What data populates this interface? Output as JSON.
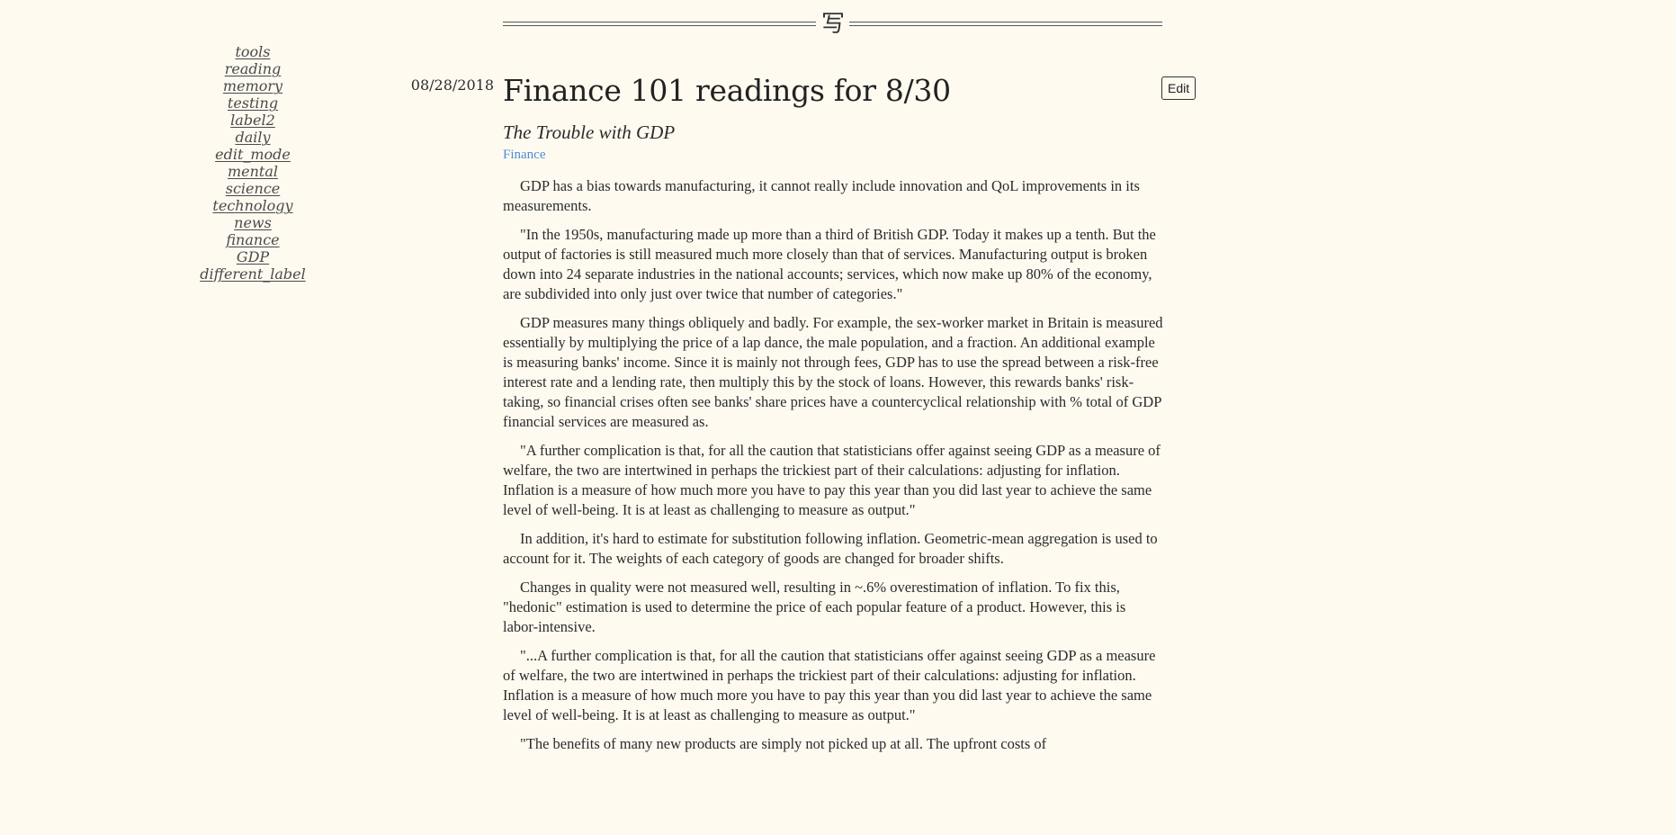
{
  "header": {
    "glyph": "写"
  },
  "sidebar": {
    "items": [
      {
        "label": "tools"
      },
      {
        "label": "reading"
      },
      {
        "label": "memory"
      },
      {
        "label": "testing"
      },
      {
        "label": "label2"
      },
      {
        "label": "daily"
      },
      {
        "label": "edit_mode"
      },
      {
        "label": "mental"
      },
      {
        "label": "science"
      },
      {
        "label": "technology"
      },
      {
        "label": "news"
      },
      {
        "label": "finance"
      },
      {
        "label": "GDP"
      },
      {
        "label": "different_label"
      }
    ]
  },
  "post": {
    "date": "08/28/2018",
    "title": "Finance 101 readings for 8/30",
    "edit_label": "Edit",
    "subtitle": "The Trouble with GDP",
    "tag": "Finance",
    "paragraphs": [
      "GDP has a bias towards manufacturing, it cannot really include innovation and QoL improvements in its measurements.",
      "\"In the 1950s, manufacturing made up more than a third of British GDP. Today it makes up a tenth. But the output of factories is still measured much more closely than that of services. Manufacturing output is broken down into 24 separate industries in the national accounts; services, which now make up 80% of the economy, are subdivided into only just over twice that number of categories.\"",
      "GDP measures many things obliquely and badly. For example, the sex-worker market in Britain is measured essentially by multiplying the price of a lap dance, the male population, and a fraction. An additional example is measuring banks' income. Since it is mainly not through fees, GDP has to use the spread between a risk-free interest rate and a lending rate, then multiply this by the stock of loans. However, this rewards banks' risk-taking, so financial crises often see banks' share prices have a countercyclical relationship with % total of GDP financial services are measured as.",
      "\"A further complication is that, for all the caution that statisticians offer against seeing GDP as a measure of welfare, the two are intertwined in perhaps the trickiest part of their calculations: adjusting for inflation. Inflation is a measure of how much more you have to pay this year than you did last year to achieve the same level of well-being. It is at least as challenging to measure as output.\"",
      "In addition, it's hard to estimate for substitution following inflation. Geometric-mean aggregation is used to account for it. The weights of each category of goods are changed for broader shifts.",
      "Changes in quality were not measured well, resulting in ~.6% overestimation of inflation. To fix this, \"hedonic\" estimation is used to determine the price of each popular feature of a product. However, this is labor-intensive.",
      "\"...A further complication is that, for all the caution that statisticians offer against seeing GDP as a measure of welfare, the two are intertwined in perhaps the trickiest part of their calculations: adjusting for inflation. Inflation is a measure of how much more you have to pay this year than you did last year to achieve the same level of well-being. It is at least as challenging to measure as output.\"",
      "\"The benefits of many new products are simply not picked up at all. The upfront costs of"
    ]
  }
}
